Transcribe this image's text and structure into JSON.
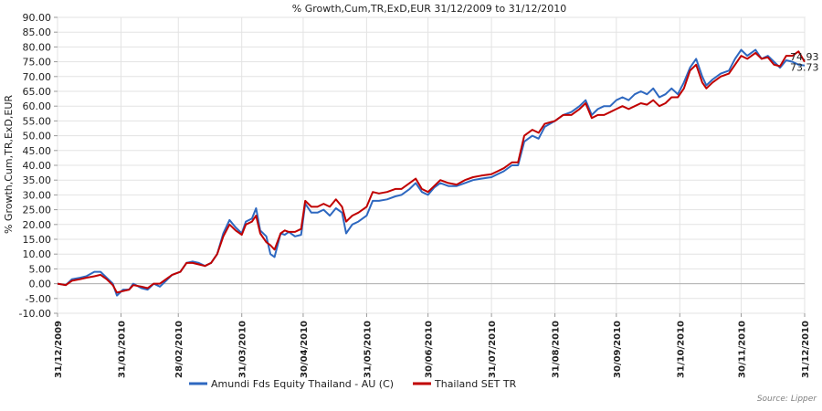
{
  "chart_data": {
    "type": "line",
    "title": "% Growth,Cum,TR,ExD,EUR 31/12/2009 to 31/12/2010",
    "ylabel": "% Growth,Cum,TR,ExD,EUR",
    "xlabel": "",
    "ylim": [
      -10,
      90
    ],
    "y_ticks": [
      -10,
      -5,
      0,
      5,
      10,
      15,
      20,
      25,
      30,
      35,
      40,
      45,
      50,
      55,
      60,
      65,
      70,
      75,
      80,
      85,
      90
    ],
    "y_tick_labels": [
      "-10.00",
      "-5.00",
      "0.00",
      "5.00",
      "10.00",
      "15.00",
      "20.00",
      "25.00",
      "30.00",
      "35.00",
      "40.00",
      "45.00",
      "50.00",
      "55.00",
      "60.00",
      "65.00",
      "70.00",
      "75.00",
      "80.00",
      "85.00",
      "90.00"
    ],
    "x_range": [
      "2009-12-31",
      "2010-12-31"
    ],
    "x_ticks": [
      "2009-12-31",
      "2010-01-31",
      "2010-02-28",
      "2010-03-31",
      "2010-04-30",
      "2010-05-31",
      "2010-06-30",
      "2010-07-31",
      "2010-08-31",
      "2010-09-30",
      "2010-10-31",
      "2010-11-30",
      "2010-12-31"
    ],
    "x_tick_labels": [
      "31/12/2009",
      "31/01/2010",
      "28/02/2010",
      "31/03/2010",
      "30/04/2010",
      "31/05/2010",
      "30/06/2010",
      "31/07/2010",
      "31/08/2010",
      "30/09/2010",
      "31/10/2010",
      "30/11/2010",
      "31/12/2010"
    ],
    "grid": true,
    "legend_position": "bottom",
    "series": [
      {
        "name": "Amundi Fds Equity Thailand - AU (C)",
        "color": "#2e68c0",
        "end_label": "73.73",
        "points": [
          [
            "2009-12-31",
            0
          ],
          [
            "2010-01-04",
            -0.5
          ],
          [
            "2010-01-07",
            1.5
          ],
          [
            "2010-01-11",
            2
          ],
          [
            "2010-01-14",
            2.5
          ],
          [
            "2010-01-18",
            4
          ],
          [
            "2010-01-21",
            4
          ],
          [
            "2010-01-24",
            2
          ],
          [
            "2010-01-27",
            0
          ],
          [
            "2010-01-29",
            -4
          ],
          [
            "2010-02-01",
            -2
          ],
          [
            "2010-02-04",
            -2
          ],
          [
            "2010-02-06",
            0
          ],
          [
            "2010-02-10",
            -1.5
          ],
          [
            "2010-02-13",
            -2
          ],
          [
            "2010-02-16",
            0
          ],
          [
            "2010-02-19",
            -1
          ],
          [
            "2010-02-22",
            1
          ],
          [
            "2010-02-25",
            3
          ],
          [
            "2010-03-01",
            4
          ],
          [
            "2010-03-04",
            7
          ],
          [
            "2010-03-07",
            7.5
          ],
          [
            "2010-03-10",
            7
          ],
          [
            "2010-03-13",
            6
          ],
          [
            "2010-03-16",
            7
          ],
          [
            "2010-03-19",
            10
          ],
          [
            "2010-03-22",
            17
          ],
          [
            "2010-03-25",
            21.5
          ],
          [
            "2010-03-28",
            19
          ],
          [
            "2010-03-31",
            17
          ],
          [
            "2010-04-02",
            21
          ],
          [
            "2010-04-05",
            22
          ],
          [
            "2010-04-07",
            25.5
          ],
          [
            "2010-04-09",
            18
          ],
          [
            "2010-04-12",
            16
          ],
          [
            "2010-04-14",
            10
          ],
          [
            "2010-04-16",
            9
          ],
          [
            "2010-04-19",
            17
          ],
          [
            "2010-04-21",
            16.5
          ],
          [
            "2010-04-23",
            17.5
          ],
          [
            "2010-04-26",
            16
          ],
          [
            "2010-04-29",
            16.5
          ],
          [
            "2010-05-01",
            27
          ],
          [
            "2010-05-04",
            24
          ],
          [
            "2010-05-07",
            24
          ],
          [
            "2010-05-10",
            25
          ],
          [
            "2010-05-13",
            23
          ],
          [
            "2010-05-16",
            25.5
          ],
          [
            "2010-05-19",
            24
          ],
          [
            "2010-05-21",
            17
          ],
          [
            "2010-05-24",
            20
          ],
          [
            "2010-05-27",
            21
          ],
          [
            "2010-05-31",
            23
          ],
          [
            "2010-06-03",
            28
          ],
          [
            "2010-06-06",
            28
          ],
          [
            "2010-06-10",
            28.5
          ],
          [
            "2010-06-14",
            29.5
          ],
          [
            "2010-06-17",
            30
          ],
          [
            "2010-06-21",
            32
          ],
          [
            "2010-06-24",
            34
          ],
          [
            "2010-06-27",
            31
          ],
          [
            "2010-06-30",
            30
          ],
          [
            "2010-07-03",
            32.5
          ],
          [
            "2010-07-06",
            34
          ],
          [
            "2010-07-10",
            33
          ],
          [
            "2010-07-14",
            33
          ],
          [
            "2010-07-18",
            34
          ],
          [
            "2010-07-22",
            35
          ],
          [
            "2010-07-26",
            35.5
          ],
          [
            "2010-07-31",
            36
          ],
          [
            "2010-08-03",
            37
          ],
          [
            "2010-08-06",
            38
          ],
          [
            "2010-08-10",
            40
          ],
          [
            "2010-08-13",
            40
          ],
          [
            "2010-08-16",
            48
          ],
          [
            "2010-08-20",
            50
          ],
          [
            "2010-08-23",
            49
          ],
          [
            "2010-08-26",
            53
          ],
          [
            "2010-08-31",
            55
          ],
          [
            "2010-09-04",
            57
          ],
          [
            "2010-09-08",
            58
          ],
          [
            "2010-09-12",
            60
          ],
          [
            "2010-09-15",
            62
          ],
          [
            "2010-09-18",
            57
          ],
          [
            "2010-09-21",
            59
          ],
          [
            "2010-09-24",
            60
          ],
          [
            "2010-09-27",
            60
          ],
          [
            "2010-09-30",
            62
          ],
          [
            "2010-10-03",
            63
          ],
          [
            "2010-10-06",
            62
          ],
          [
            "2010-10-09",
            64
          ],
          [
            "2010-10-12",
            65
          ],
          [
            "2010-10-15",
            64
          ],
          [
            "2010-10-18",
            66
          ],
          [
            "2010-10-21",
            63
          ],
          [
            "2010-10-24",
            64
          ],
          [
            "2010-10-27",
            66
          ],
          [
            "2010-10-30",
            64
          ],
          [
            "2010-11-02",
            68
          ],
          [
            "2010-11-05",
            73
          ],
          [
            "2010-11-08",
            76
          ],
          [
            "2010-11-11",
            70
          ],
          [
            "2010-11-13",
            67
          ],
          [
            "2010-11-16",
            69
          ],
          [
            "2010-11-20",
            71
          ],
          [
            "2010-11-24",
            72
          ],
          [
            "2010-11-27",
            76
          ],
          [
            "2010-11-30",
            79
          ],
          [
            "2010-12-03",
            77
          ],
          [
            "2010-12-07",
            79
          ],
          [
            "2010-12-10",
            76
          ],
          [
            "2010-12-13",
            77
          ],
          [
            "2010-12-16",
            75
          ],
          [
            "2010-12-19",
            73
          ],
          [
            "2010-12-22",
            75.5
          ],
          [
            "2010-12-25",
            75
          ],
          [
            "2010-12-28",
            74
          ],
          [
            "2010-12-31",
            73.73
          ]
        ]
      },
      {
        "name": "Thailand SET TR",
        "color": "#c00000",
        "end_label": "74.93",
        "points": [
          [
            "2009-12-31",
            0
          ],
          [
            "2010-01-04",
            -0.5
          ],
          [
            "2010-01-07",
            1
          ],
          [
            "2010-01-11",
            1.5
          ],
          [
            "2010-01-14",
            2
          ],
          [
            "2010-01-18",
            2.5
          ],
          [
            "2010-01-21",
            3
          ],
          [
            "2010-01-24",
            1.5
          ],
          [
            "2010-01-27",
            -0.5
          ],
          [
            "2010-01-29",
            -3
          ],
          [
            "2010-02-01",
            -2.5
          ],
          [
            "2010-02-04",
            -2
          ],
          [
            "2010-02-06",
            -0.5
          ],
          [
            "2010-02-10",
            -1
          ],
          [
            "2010-02-13",
            -1.5
          ],
          [
            "2010-02-16",
            0
          ],
          [
            "2010-02-19",
            0
          ],
          [
            "2010-02-22",
            1.5
          ],
          [
            "2010-02-25",
            3
          ],
          [
            "2010-03-01",
            4
          ],
          [
            "2010-03-04",
            7
          ],
          [
            "2010-03-07",
            7
          ],
          [
            "2010-03-10",
            6.5
          ],
          [
            "2010-03-13",
            6
          ],
          [
            "2010-03-16",
            7
          ],
          [
            "2010-03-19",
            10
          ],
          [
            "2010-03-22",
            16
          ],
          [
            "2010-03-25",
            20
          ],
          [
            "2010-03-28",
            18
          ],
          [
            "2010-03-31",
            16.5
          ],
          [
            "2010-04-02",
            20
          ],
          [
            "2010-04-05",
            21
          ],
          [
            "2010-04-07",
            23
          ],
          [
            "2010-04-09",
            17
          ],
          [
            "2010-04-12",
            14
          ],
          [
            "2010-04-14",
            13
          ],
          [
            "2010-04-16",
            11.5
          ],
          [
            "2010-04-19",
            17
          ],
          [
            "2010-04-21",
            18
          ],
          [
            "2010-04-23",
            17.5
          ],
          [
            "2010-04-26",
            17.5
          ],
          [
            "2010-04-29",
            18.5
          ],
          [
            "2010-05-01",
            28
          ],
          [
            "2010-05-04",
            26
          ],
          [
            "2010-05-07",
            26
          ],
          [
            "2010-05-10",
            27
          ],
          [
            "2010-05-13",
            26
          ],
          [
            "2010-05-16",
            28.5
          ],
          [
            "2010-05-19",
            26
          ],
          [
            "2010-05-21",
            21
          ],
          [
            "2010-05-24",
            23
          ],
          [
            "2010-05-27",
            24
          ],
          [
            "2010-05-31",
            26
          ],
          [
            "2010-06-03",
            31
          ],
          [
            "2010-06-06",
            30.5
          ],
          [
            "2010-06-10",
            31
          ],
          [
            "2010-06-14",
            32
          ],
          [
            "2010-06-17",
            32
          ],
          [
            "2010-06-21",
            34
          ],
          [
            "2010-06-24",
            35.5
          ],
          [
            "2010-06-27",
            32
          ],
          [
            "2010-06-30",
            31
          ],
          [
            "2010-07-03",
            33
          ],
          [
            "2010-07-06",
            35
          ],
          [
            "2010-07-10",
            34
          ],
          [
            "2010-07-14",
            33.5
          ],
          [
            "2010-07-18",
            35
          ],
          [
            "2010-07-22",
            36
          ],
          [
            "2010-07-26",
            36.5
          ],
          [
            "2010-07-31",
            37
          ],
          [
            "2010-08-03",
            38
          ],
          [
            "2010-08-06",
            39
          ],
          [
            "2010-08-10",
            41
          ],
          [
            "2010-08-13",
            41
          ],
          [
            "2010-08-16",
            50
          ],
          [
            "2010-08-20",
            52
          ],
          [
            "2010-08-23",
            51
          ],
          [
            "2010-08-26",
            54
          ],
          [
            "2010-08-31",
            55
          ],
          [
            "2010-09-04",
            57
          ],
          [
            "2010-09-08",
            57
          ],
          [
            "2010-09-12",
            59
          ],
          [
            "2010-09-15",
            61
          ],
          [
            "2010-09-18",
            56
          ],
          [
            "2010-09-21",
            57
          ],
          [
            "2010-09-24",
            57
          ],
          [
            "2010-09-27",
            58
          ],
          [
            "2010-09-30",
            59
          ],
          [
            "2010-10-03",
            60
          ],
          [
            "2010-10-06",
            59
          ],
          [
            "2010-10-09",
            60
          ],
          [
            "2010-10-12",
            61
          ],
          [
            "2010-10-15",
            60.5
          ],
          [
            "2010-10-18",
            62
          ],
          [
            "2010-10-21",
            60
          ],
          [
            "2010-10-24",
            61
          ],
          [
            "2010-10-27",
            63
          ],
          [
            "2010-10-30",
            63
          ],
          [
            "2010-11-02",
            66
          ],
          [
            "2010-11-05",
            72
          ],
          [
            "2010-11-08",
            74
          ],
          [
            "2010-11-11",
            68
          ],
          [
            "2010-11-13",
            66
          ],
          [
            "2010-11-16",
            68
          ],
          [
            "2010-11-20",
            70
          ],
          [
            "2010-11-24",
            71
          ],
          [
            "2010-11-27",
            74
          ],
          [
            "2010-11-30",
            77
          ],
          [
            "2010-12-03",
            76
          ],
          [
            "2010-12-07",
            78
          ],
          [
            "2010-12-10",
            76
          ],
          [
            "2010-12-13",
            76.5
          ],
          [
            "2010-12-16",
            74
          ],
          [
            "2010-12-19",
            73.5
          ],
          [
            "2010-12-22",
            77
          ],
          [
            "2010-12-25",
            77
          ],
          [
            "2010-12-28",
            78.5
          ],
          [
            "2010-12-31",
            74.93
          ]
        ]
      }
    ]
  },
  "source_text": "Source: Lipper"
}
